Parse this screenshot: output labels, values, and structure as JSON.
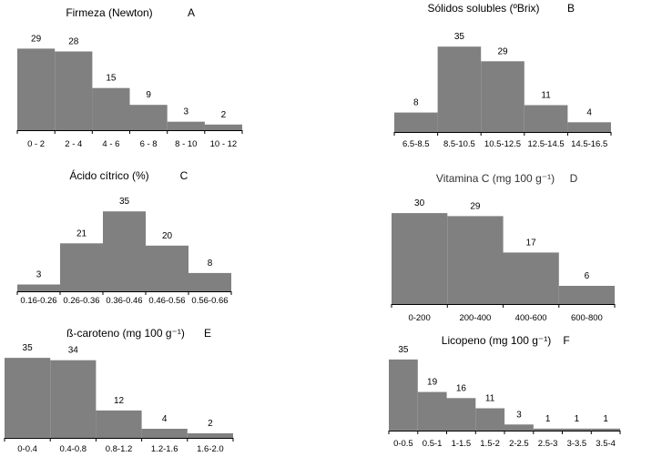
{
  "chart_data": [
    {
      "type": "bar",
      "title": "Firmeza (Newton)",
      "panel": "A",
      "categories": [
        "0 - 2",
        "2 - 4",
        "4 - 6",
        "6 - 8",
        "8 - 10",
        "10 - 12"
      ],
      "values": [
        29,
        28,
        15,
        9,
        3,
        2
      ],
      "xlabel": "",
      "ylabel": "",
      "ylim": [
        0,
        35
      ]
    },
    {
      "type": "bar",
      "title": "Sólidos solubles (ºBrix)",
      "panel": "B",
      "categories": [
        "6.5-8.5",
        "8.5-10.5",
        "10.5-12.5",
        "12.5-14.5",
        "14.5-16.5"
      ],
      "values": [
        8,
        35,
        29,
        11,
        4
      ],
      "xlabel": "",
      "ylabel": "",
      "ylim": [
        0,
        35
      ]
    },
    {
      "type": "bar",
      "title": "Ácido cítrico (%)",
      "panel": "C",
      "categories": [
        "0.16-0.26",
        "0.26-0.36",
        "0.36-0.46",
        "0.46-0.56",
        "0.56-0.66"
      ],
      "values": [
        3,
        21,
        35,
        20,
        8
      ],
      "xlabel": "",
      "ylabel": "",
      "ylim": [
        0,
        35
      ]
    },
    {
      "type": "bar",
      "title": "Vitamina C (mg 100 g⁻¹)",
      "panel": "D",
      "categories": [
        "0-200",
        "200-400",
        "400-600",
        "600-800"
      ],
      "values": [
        30,
        29,
        17,
        6
      ],
      "xlabel": "",
      "ylabel": "",
      "ylim": [
        0,
        35
      ]
    },
    {
      "type": "bar",
      "title": "ß-caroteno (mg 100 g⁻¹)",
      "panel": "E",
      "categories": [
        "0-0.4",
        "0.4-0.8",
        "0.8-1.2",
        "1.2-1.6",
        "1.6-2.0"
      ],
      "values": [
        35,
        34,
        12,
        4,
        2
      ],
      "xlabel": "",
      "ylabel": "",
      "ylim": [
        0,
        35
      ]
    },
    {
      "type": "bar",
      "title": "Licopeno (mg 100 g⁻¹)",
      "panel": "F",
      "categories": [
        "0-0.5",
        "0.5-1",
        "1-1.5",
        "1.5-2",
        "2-2.5",
        "2.5-3",
        "3-3.5",
        "3.5-4"
      ],
      "values": [
        35,
        19,
        16,
        11,
        3,
        1,
        1,
        1
      ],
      "xlabel": "",
      "ylabel": "",
      "ylim": [
        0,
        35
      ]
    }
  ]
}
